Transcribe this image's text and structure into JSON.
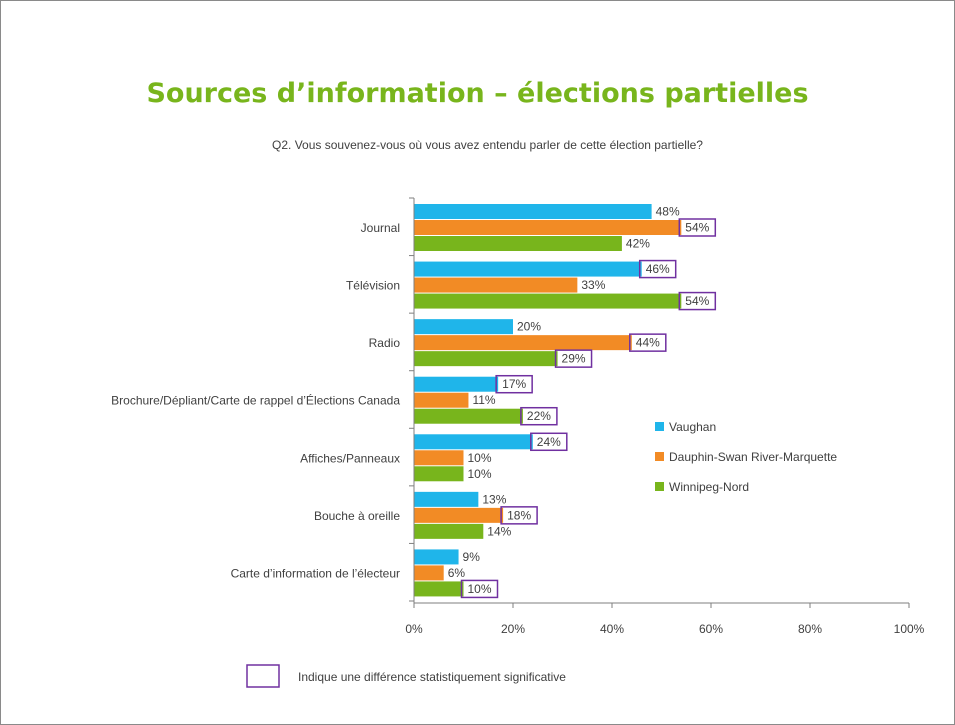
{
  "chart_data": {
    "type": "bar",
    "orientation": "horizontal",
    "title": "Sources d’information – élections partielles",
    "subtitle": "Q2. Vous souvenez-vous où vous avez entendu parler de cette élection partielle?",
    "categories": [
      "Journal",
      "Télévision",
      "Radio",
      "Brochure/Dépliant/Carte de rappel d’Élections Canada",
      "Affiches/Panneaux",
      "Bouche à oreille",
      "Carte d’information de l’électeur"
    ],
    "series": [
      {
        "name": "Vaughan",
        "color": "#1fb5ea",
        "values": [
          48,
          46,
          20,
          17,
          24,
          13,
          9
        ]
      },
      {
        "name": "Dauphin-Swan River-Marquette",
        "color": "#f28b25",
        "values": [
          54,
          33,
          44,
          11,
          10,
          18,
          6
        ]
      },
      {
        "name": "Winnipeg-Nord",
        "color": "#78b51c",
        "values": [
          42,
          54,
          29,
          22,
          10,
          14,
          10
        ]
      }
    ],
    "value_labels": [
      [
        "48%",
        "46%",
        "20%",
        "17%",
        "24%",
        "13%",
        "9%"
      ],
      [
        "54%",
        "33%",
        "44%",
        "11%",
        "10%",
        "18%",
        "6%"
      ],
      [
        "42%",
        "54%",
        "29%",
        "22%",
        "10%",
        "14%",
        "10%"
      ]
    ],
    "significant": [
      [
        false,
        true,
        false,
        true,
        true,
        false,
        false
      ],
      [
        true,
        false,
        true,
        false,
        false,
        true,
        false
      ],
      [
        false,
        true,
        true,
        true,
        false,
        false,
        true
      ]
    ],
    "highlight_color": "#7030a0",
    "xlim": [
      0,
      100
    ],
    "xticks": [
      "0%",
      "20%",
      "40%",
      "60%",
      "80%",
      "100%"
    ],
    "legend_position": "right",
    "grid": false
  },
  "note": {
    "text": "Indique une différence statistiquement significative"
  }
}
